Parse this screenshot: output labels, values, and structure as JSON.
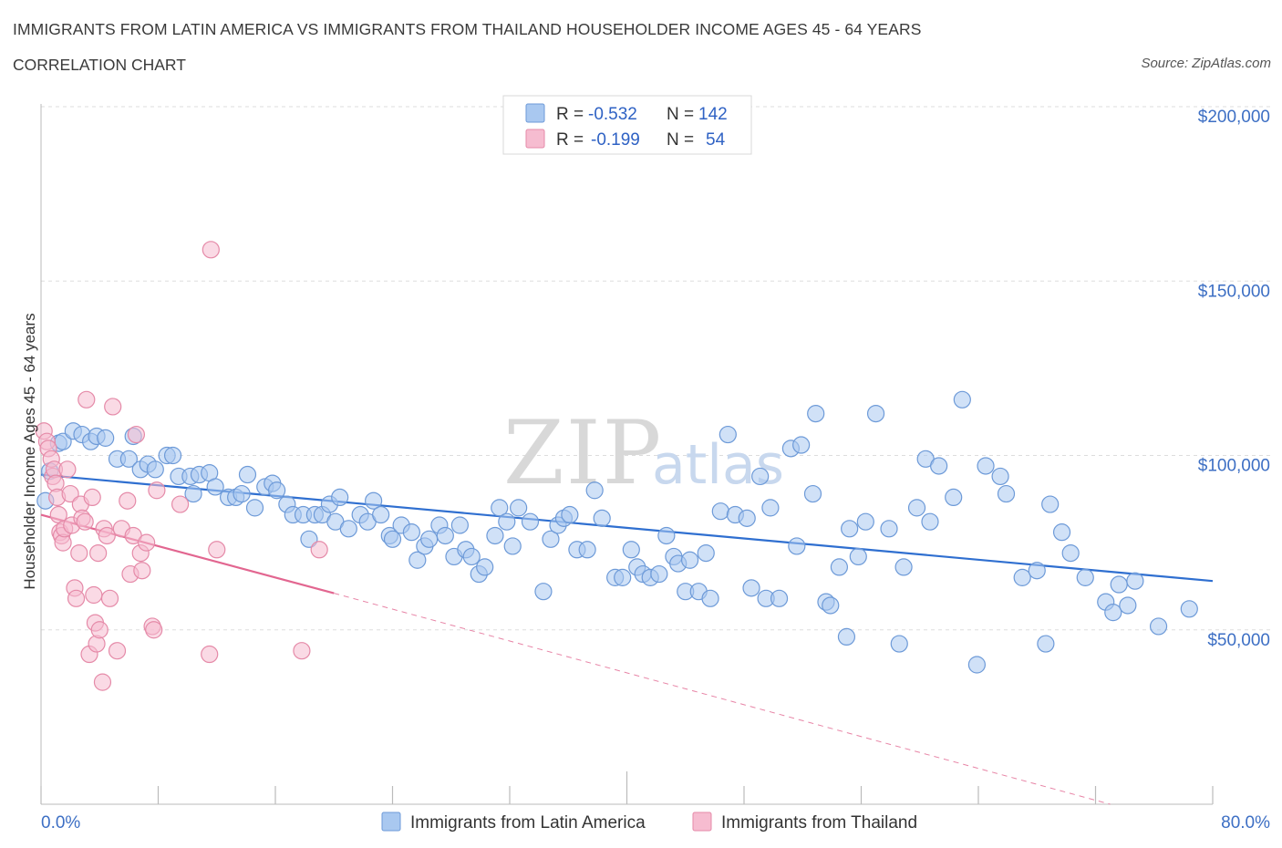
{
  "header": {
    "title": "IMMIGRANTS FROM LATIN AMERICA VS IMMIGRANTS FROM THAILAND HOUSEHOLDER INCOME AGES 45 - 64 YEARS",
    "subtitle": "CORRELATION CHART",
    "source": "Source: ZipAtlas.com"
  },
  "watermark": {
    "zip": "ZIP",
    "atlas": "atlas"
  },
  "colors": {
    "blue_fill": "#a9c8f0",
    "blue_stroke": "#6d9ad8",
    "blue_line": "#2f6fd0",
    "pink_fill": "#f6bcd0",
    "pink_stroke": "#e58aa8",
    "pink_line": "#e26690",
    "axis_text": "#3d6fc4",
    "grid": "#dddddd"
  },
  "legend": {
    "r_label": "R =",
    "n_label": "N =",
    "entries": [
      {
        "r": "-0.532",
        "n": "142",
        "color": "blue"
      },
      {
        "r": "-0.199",
        "n": "54",
        "color": "pink"
      }
    ]
  },
  "chart_data": {
    "type": "scatter",
    "xlabel": "",
    "ylabel": "Householder Income Ages 45 - 64 years",
    "xlim": [
      0,
      80
    ],
    "ylim": [
      0,
      205000
    ],
    "x_tick_labels": [
      "0.0%",
      "80.0%"
    ],
    "y_ticks": [
      {
        "value": 50000,
        "label": "$50,000"
      },
      {
        "value": 100000,
        "label": "$100,000"
      },
      {
        "value": 150000,
        "label": "$150,000"
      },
      {
        "value": 200000,
        "label": "$200,000"
      }
    ],
    "grid": true,
    "legend_position": "top-center",
    "series": [
      {
        "name": "Immigrants from Latin America",
        "color": "blue",
        "trend": {
          "x0": 0,
          "y0": 94500,
          "x1": 80,
          "y1": 64000,
          "dashed_from": null
        },
        "points": [
          [
            0.3,
            87000
          ],
          [
            0.6,
            95500
          ],
          [
            1.2,
            103500
          ],
          [
            1.5,
            104000
          ],
          [
            2.2,
            107000
          ],
          [
            2.8,
            106000
          ],
          [
            3.4,
            104000
          ],
          [
            3.8,
            105500
          ],
          [
            4.4,
            105000
          ],
          [
            5.2,
            99000
          ],
          [
            6.0,
            99000
          ],
          [
            6.3,
            105500
          ],
          [
            6.8,
            96000
          ],
          [
            7.3,
            97500
          ],
          [
            7.8,
            96000
          ],
          [
            8.6,
            100000
          ],
          [
            9.0,
            100000
          ],
          [
            9.4,
            94000
          ],
          [
            10.2,
            94000
          ],
          [
            10.4,
            89000
          ],
          [
            10.8,
            94500
          ],
          [
            11.5,
            95000
          ],
          [
            11.9,
            91000
          ],
          [
            12.8,
            88000
          ],
          [
            13.3,
            88000
          ],
          [
            13.7,
            89000
          ],
          [
            14.1,
            94500
          ],
          [
            14.6,
            85000
          ],
          [
            15.3,
            91000
          ],
          [
            15.8,
            92000
          ],
          [
            16.1,
            90000
          ],
          [
            16.8,
            86000
          ],
          [
            17.2,
            83000
          ],
          [
            17.9,
            83000
          ],
          [
            18.3,
            76000
          ],
          [
            18.7,
            83000
          ],
          [
            19.2,
            83000
          ],
          [
            19.7,
            86000
          ],
          [
            20.1,
            81000
          ],
          [
            20.4,
            88000
          ],
          [
            21.0,
            79000
          ],
          [
            21.8,
            83000
          ],
          [
            22.3,
            81000
          ],
          [
            22.7,
            87000
          ],
          [
            23.2,
            83000
          ],
          [
            23.8,
            77000
          ],
          [
            24.0,
            76000
          ],
          [
            24.6,
            80000
          ],
          [
            25.3,
            78000
          ],
          [
            25.7,
            70000
          ],
          [
            26.2,
            74000
          ],
          [
            26.5,
            76000
          ],
          [
            27.2,
            80000
          ],
          [
            27.6,
            77000
          ],
          [
            28.2,
            71000
          ],
          [
            28.6,
            80000
          ],
          [
            29.0,
            73000
          ],
          [
            29.4,
            71000
          ],
          [
            29.9,
            66000
          ],
          [
            30.3,
            68000
          ],
          [
            31.0,
            77000
          ],
          [
            31.3,
            85000
          ],
          [
            31.8,
            81000
          ],
          [
            32.2,
            74000
          ],
          [
            32.6,
            85000
          ],
          [
            33.4,
            81000
          ],
          [
            34.3,
            61000
          ],
          [
            34.8,
            76000
          ],
          [
            35.3,
            80000
          ],
          [
            35.7,
            82000
          ],
          [
            36.1,
            83000
          ],
          [
            36.6,
            73000
          ],
          [
            37.3,
            73000
          ],
          [
            37.8,
            90000
          ],
          [
            38.3,
            82000
          ],
          [
            39.2,
            65000
          ],
          [
            39.7,
            65000
          ],
          [
            40.3,
            73000
          ],
          [
            40.7,
            68000
          ],
          [
            41.1,
            66000
          ],
          [
            41.6,
            65000
          ],
          [
            42.2,
            66000
          ],
          [
            42.7,
            77000
          ],
          [
            43.2,
            71000
          ],
          [
            43.5,
            69000
          ],
          [
            44.0,
            61000
          ],
          [
            44.3,
            70000
          ],
          [
            44.9,
            61000
          ],
          [
            45.4,
            72000
          ],
          [
            45.7,
            59000
          ],
          [
            46.4,
            84000
          ],
          [
            46.9,
            106000
          ],
          [
            47.4,
            83000
          ],
          [
            48.2,
            82000
          ],
          [
            48.5,
            62000
          ],
          [
            49.1,
            94000
          ],
          [
            49.5,
            59000
          ],
          [
            49.8,
            85000
          ],
          [
            50.4,
            59000
          ],
          [
            51.2,
            102000
          ],
          [
            51.6,
            74000
          ],
          [
            51.9,
            103000
          ],
          [
            52.7,
            89000
          ],
          [
            52.9,
            112000
          ],
          [
            53.6,
            58000
          ],
          [
            53.9,
            57000
          ],
          [
            54.5,
            68000
          ],
          [
            55.0,
            48000
          ],
          [
            55.2,
            79000
          ],
          [
            55.8,
            71000
          ],
          [
            56.3,
            81000
          ],
          [
            57.0,
            112000
          ],
          [
            57.9,
            79000
          ],
          [
            58.6,
            46000
          ],
          [
            58.9,
            68000
          ],
          [
            59.8,
            85000
          ],
          [
            60.4,
            99000
          ],
          [
            60.7,
            81000
          ],
          [
            61.3,
            97000
          ],
          [
            62.3,
            88000
          ],
          [
            62.9,
            116000
          ],
          [
            63.9,
            40000
          ],
          [
            64.5,
            97000
          ],
          [
            65.5,
            94000
          ],
          [
            65.9,
            89000
          ],
          [
            67.0,
            65000
          ],
          [
            68.0,
            67000
          ],
          [
            68.6,
            46000
          ],
          [
            68.9,
            86000
          ],
          [
            69.7,
            78000
          ],
          [
            70.3,
            72000
          ],
          [
            71.3,
            65000
          ],
          [
            72.7,
            58000
          ],
          [
            73.2,
            55000
          ],
          [
            73.6,
            63000
          ],
          [
            74.2,
            57000
          ],
          [
            74.7,
            64000
          ],
          [
            76.3,
            51000
          ],
          [
            78.4,
            56000
          ]
        ]
      },
      {
        "name": "Immigrants from Thailand",
        "color": "pink",
        "trend": {
          "x0": 0,
          "y0": 83000,
          "x1": 20,
          "y1": 60500,
          "dashed_to_x": 73,
          "dashed_to_y": 0
        },
        "points": [
          [
            0.2,
            107000
          ],
          [
            0.4,
            104000
          ],
          [
            0.5,
            102000
          ],
          [
            0.7,
            99000
          ],
          [
            0.8,
            94000
          ],
          [
            0.9,
            96000
          ],
          [
            1.0,
            92000
          ],
          [
            1.1,
            88000
          ],
          [
            1.2,
            83000
          ],
          [
            1.3,
            78000
          ],
          [
            1.4,
            77000
          ],
          [
            1.5,
            75000
          ],
          [
            1.6,
            79000
          ],
          [
            1.8,
            96000
          ],
          [
            2.0,
            89000
          ],
          [
            2.1,
            80000
          ],
          [
            2.3,
            62000
          ],
          [
            2.4,
            59000
          ],
          [
            2.6,
            72000
          ],
          [
            2.7,
            86000
          ],
          [
            2.8,
            82000
          ],
          [
            3.0,
            81000
          ],
          [
            3.1,
            116000
          ],
          [
            3.3,
            43000
          ],
          [
            3.5,
            88000
          ],
          [
            3.6,
            60000
          ],
          [
            3.7,
            52000
          ],
          [
            3.8,
            46000
          ],
          [
            3.9,
            72000
          ],
          [
            4.0,
            50000
          ],
          [
            4.2,
            35000
          ],
          [
            4.3,
            79000
          ],
          [
            4.5,
            77000
          ],
          [
            4.7,
            59000
          ],
          [
            4.9,
            114000
          ],
          [
            5.2,
            44000
          ],
          [
            5.5,
            79000
          ],
          [
            5.9,
            87000
          ],
          [
            6.1,
            66000
          ],
          [
            6.3,
            77000
          ],
          [
            6.5,
            106000
          ],
          [
            6.8,
            72000
          ],
          [
            6.9,
            67000
          ],
          [
            7.2,
            75000
          ],
          [
            7.6,
            51000
          ],
          [
            7.7,
            50000
          ],
          [
            7.9,
            90000
          ],
          [
            9.5,
            86000
          ],
          [
            11.5,
            43000
          ],
          [
            11.6,
            159000
          ],
          [
            12.0,
            73000
          ],
          [
            17.8,
            44000
          ],
          [
            19.0,
            73000
          ]
        ]
      }
    ]
  },
  "bottom_legend": [
    {
      "label": "Immigrants from Latin America",
      "color": "blue"
    },
    {
      "label": "Immigrants from Thailand",
      "color": "pink"
    }
  ]
}
